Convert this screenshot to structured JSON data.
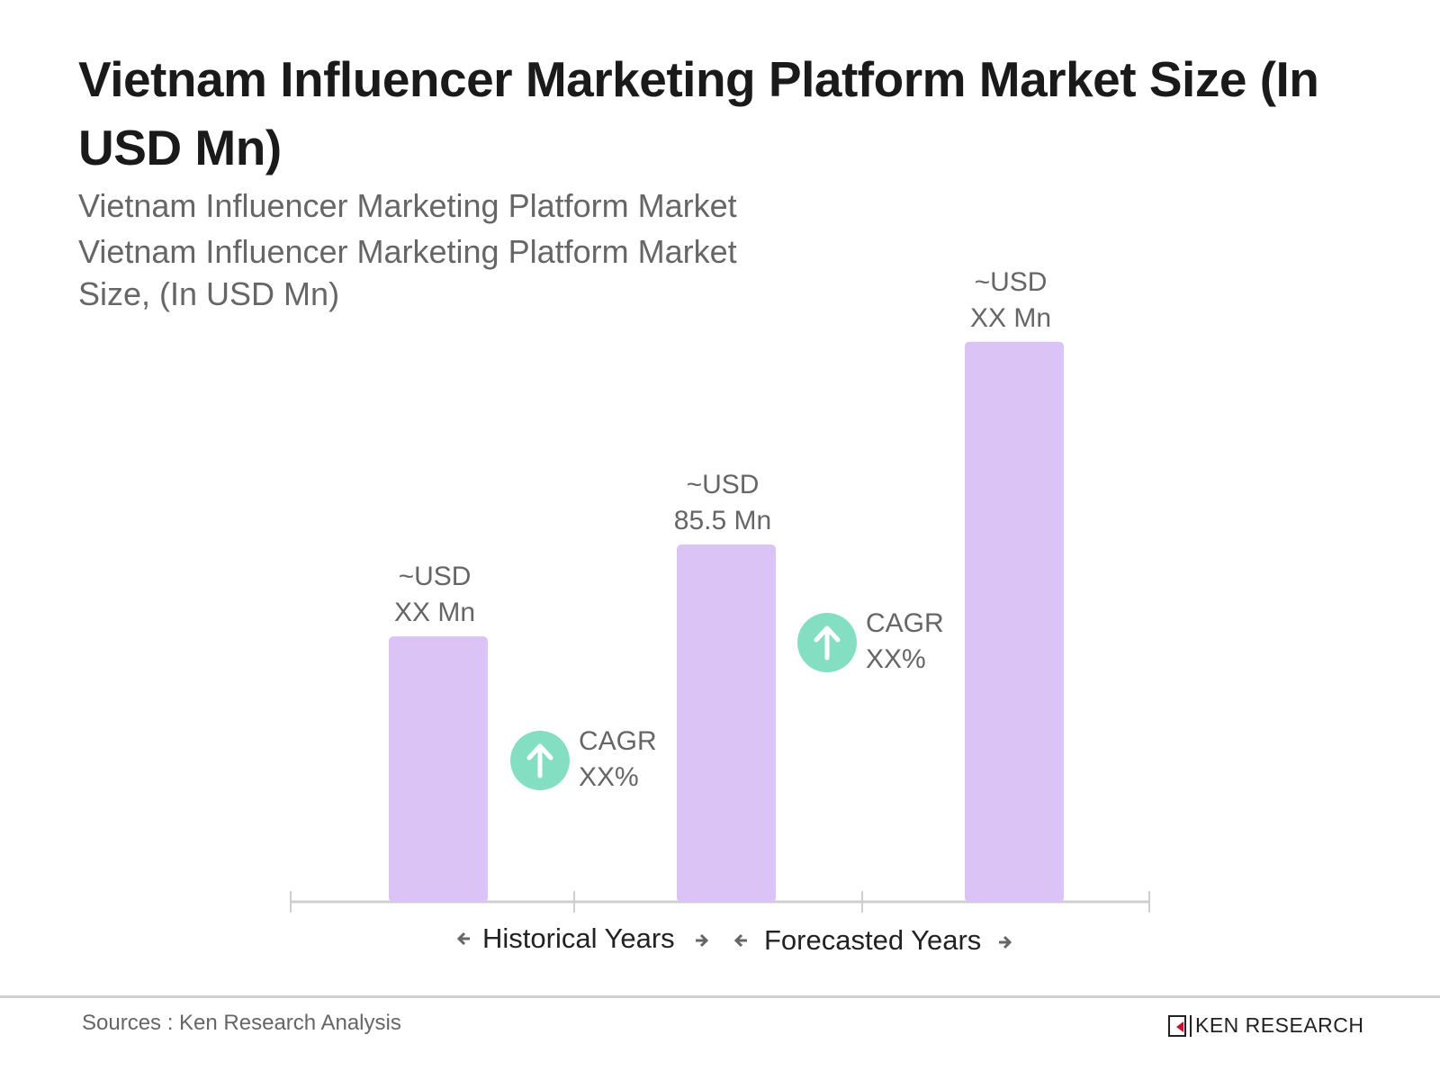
{
  "title": "Vietnam Influencer Marketing Platform Market Size (In USD Mn)",
  "subtitle_line1": "Vietnam Influencer Marketing Platform Market",
  "subtitle_line2": "Vietnam Influencer Marketing Platform Market Size, (In USD Mn)",
  "chart_data": {
    "type": "bar",
    "title": "Vietnam Influencer Marketing Platform Market Size (In USD Mn)",
    "categories": [
      "",
      "",
      ""
    ],
    "values": [
      63.5,
      85.5,
      134
    ],
    "data_labels": [
      [
        "~USD",
        "XX Mn"
      ],
      [
        "~USD",
        "85.5 Mn"
      ],
      [
        "~USD",
        "XX Mn"
      ]
    ],
    "bar_color": "#dcc3f5",
    "cagr_annotations": [
      {
        "line1": "CAGR",
        "line2": "XX%"
      },
      {
        "line1": "CAGR",
        "line2": "XX%"
      }
    ],
    "cagr_icon": "arrow-up-circle-icon",
    "cagr_color": "#84dfc2",
    "period_labels": [
      "Historical Years",
      "Forecasted Years"
    ],
    "grid": false,
    "legend": "none"
  },
  "footer": {
    "source": "Sources : Ken Research Analysis",
    "logo_text": "KEN RESEARCH"
  }
}
